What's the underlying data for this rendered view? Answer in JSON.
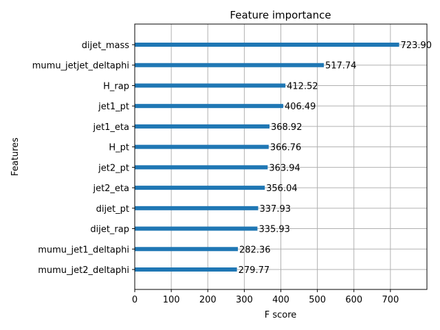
{
  "chart_data": {
    "type": "bar",
    "orientation": "horizontal",
    "title": "Feature importance",
    "xlabel": "F score",
    "ylabel": "Features",
    "xlim": [
      0,
      800
    ],
    "xticks": [
      0,
      100,
      200,
      300,
      400,
      500,
      600,
      700
    ],
    "grid": true,
    "bar_color": "#1f77b4",
    "categories": [
      "dijet_mass",
      "mumu_jetjet_deltaphi",
      "H_rap",
      "jet1_pt",
      "jet1_eta",
      "H_pt",
      "jet2_pt",
      "jet2_eta",
      "dijet_pt",
      "dijet_rap",
      "mumu_jet1_deltaphi",
      "mumu_jet2_deltaphi"
    ],
    "values": [
      723.9,
      517.74,
      412.52,
      406.49,
      368.92,
      366.76,
      363.94,
      356.04,
      337.93,
      335.93,
      282.36,
      279.77
    ],
    "value_labels": [
      "723.90",
      "517.74",
      "412.52",
      "406.49",
      "368.92",
      "366.76",
      "363.94",
      "356.04",
      "337.93",
      "335.93",
      "282.36",
      "279.77"
    ]
  }
}
